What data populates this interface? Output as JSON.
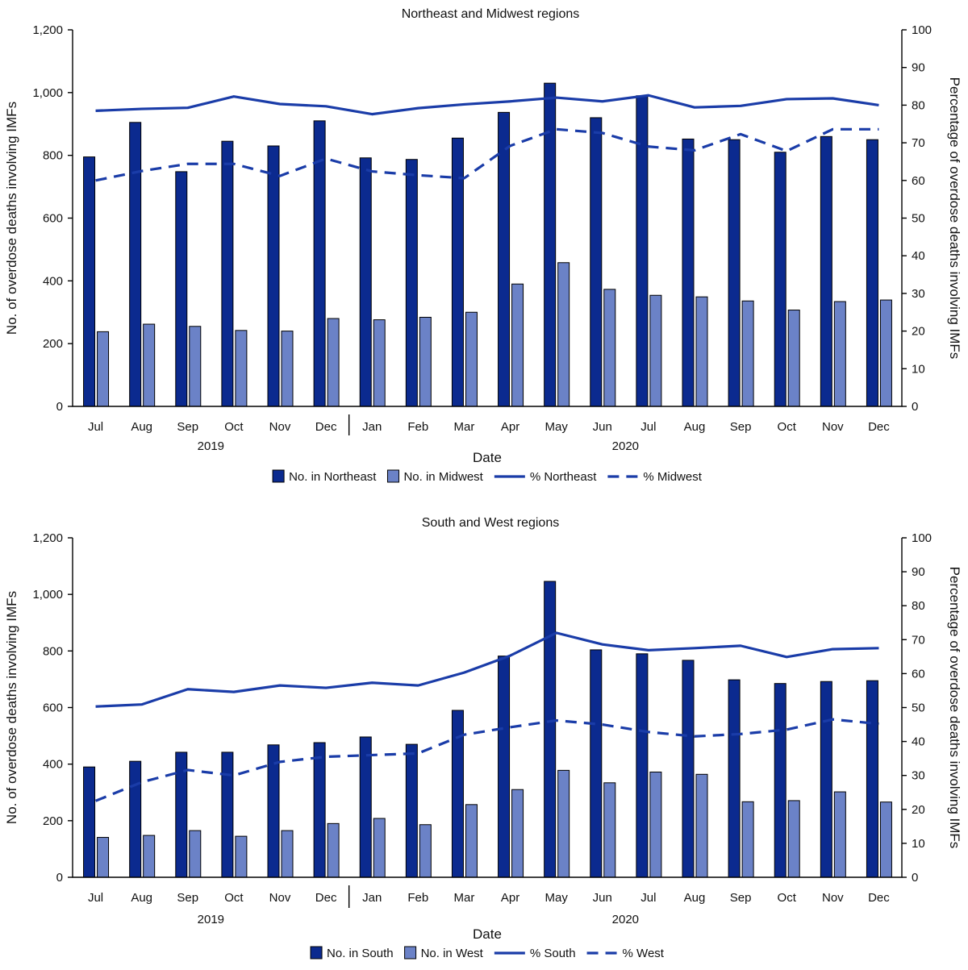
{
  "colors": {
    "bar_primary": "#0b2a8f",
    "bar_secondary": "#6b82c7",
    "line": "#1a3ca8",
    "text": "#111111"
  },
  "chart_data": [
    {
      "type": "bar",
      "title": "Northeast and Midwest regions",
      "xlabel": "Date",
      "ylabel": "No. of overdose deaths involving IMFs",
      "y2label": "Percentage of overdose deaths involving IMFs",
      "ylim": [
        0,
        1200
      ],
      "y2lim": [
        0,
        100
      ],
      "yticks": [
        0,
        200,
        400,
        600,
        800,
        1000,
        1200
      ],
      "yticklabels": [
        "0",
        "200",
        "400",
        "600",
        "800",
        "1,000",
        "1,200"
      ],
      "y2ticks": [
        0,
        10,
        20,
        30,
        40,
        50,
        60,
        70,
        80,
        90,
        100
      ],
      "y2ticklabels": [
        "0",
        "10",
        "20",
        "30",
        "40",
        "50",
        "60",
        "70",
        "80",
        "90",
        "100"
      ],
      "categories": [
        "Jul",
        "Aug",
        "Sep",
        "Oct",
        "Nov",
        "Dec",
        "Jan",
        "Feb",
        "Mar",
        "Apr",
        "May",
        "Jun",
        "Jul",
        "Aug",
        "Sep",
        "Oct",
        "Nov",
        "Dec"
      ],
      "year_groups": [
        {
          "label": "2019",
          "start": 0,
          "end": 5
        },
        {
          "label": "2020",
          "start": 6,
          "end": 17
        }
      ],
      "series": [
        {
          "name": "No. in Northeast",
          "kind": "bar",
          "axis": "left",
          "values": [
            795,
            905,
            748,
            845,
            830,
            910,
            792,
            787,
            855,
            937,
            1030,
            920,
            990,
            852,
            850,
            810,
            860,
            850
          ]
        },
        {
          "name": "No. in Midwest",
          "kind": "bar",
          "axis": "left",
          "values": [
            238,
            262,
            255,
            242,
            240,
            280,
            276,
            284,
            300,
            390,
            458,
            373,
            354,
            349,
            336,
            307,
            334,
            339
          ]
        },
        {
          "name": "% Northeast",
          "kind": "line",
          "style": "solid",
          "axis": "right",
          "values": [
            78.5,
            79.0,
            79.3,
            82.3,
            80.3,
            79.7,
            77.6,
            79.2,
            80.2,
            81.0,
            82.0,
            81.0,
            82.6,
            79.4,
            79.8,
            81.6,
            81.8,
            80.0
          ]
        },
        {
          "name": "% Midwest",
          "kind": "line",
          "style": "dashed",
          "axis": "right",
          "values": [
            60.0,
            62.5,
            64.4,
            64.4,
            61.2,
            65.8,
            62.4,
            61.4,
            60.6,
            69.2,
            73.6,
            72.6,
            69.0,
            68.0,
            72.3,
            67.8,
            73.6,
            73.6
          ]
        }
      ]
    },
    {
      "type": "bar",
      "title": "South and West regions",
      "xlabel": "Date",
      "ylabel": "No. of overdose deaths involving IMFs",
      "y2label": "Percentage of overdose deaths involving IMFs",
      "ylim": [
        0,
        1200
      ],
      "y2lim": [
        0,
        100
      ],
      "yticks": [
        0,
        200,
        400,
        600,
        800,
        1000,
        1200
      ],
      "yticklabels": [
        "0",
        "200",
        "400",
        "600",
        "800",
        "1,000",
        "1,200"
      ],
      "y2ticks": [
        0,
        10,
        20,
        30,
        40,
        50,
        60,
        70,
        80,
        90,
        100
      ],
      "y2ticklabels": [
        "0",
        "10",
        "20",
        "30",
        "40",
        "50",
        "60",
        "70",
        "80",
        "90",
        "100"
      ],
      "categories": [
        "Jul",
        "Aug",
        "Sep",
        "Oct",
        "Nov",
        "Dec",
        "Jan",
        "Feb",
        "Mar",
        "Apr",
        "May",
        "Jun",
        "Jul",
        "Aug",
        "Sep",
        "Oct",
        "Nov",
        "Dec"
      ],
      "year_groups": [
        {
          "label": "2019",
          "start": 0,
          "end": 5
        },
        {
          "label": "2020",
          "start": 6,
          "end": 17
        }
      ],
      "series": [
        {
          "name": "No. in South",
          "kind": "bar",
          "axis": "left",
          "values": [
            390,
            410,
            442,
            442,
            468,
            476,
            496,
            470,
            590,
            782,
            1046,
            804,
            790,
            767,
            698,
            685,
            692,
            695
          ]
        },
        {
          "name": "No. in West",
          "kind": "bar",
          "axis": "left",
          "values": [
            141,
            148,
            165,
            145,
            165,
            190,
            208,
            186,
            257,
            310,
            378,
            334,
            372,
            364,
            267,
            271,
            302,
            266
          ]
        },
        {
          "name": "% South",
          "kind": "line",
          "style": "solid",
          "axis": "right",
          "values": [
            50.3,
            50.9,
            55.4,
            54.6,
            56.5,
            55.8,
            57.3,
            56.5,
            60.3,
            65.3,
            72.0,
            68.6,
            66.9,
            67.5,
            68.2,
            64.9,
            67.2,
            67.5
          ]
        },
        {
          "name": "% West",
          "kind": "line",
          "style": "dashed",
          "axis": "right",
          "values": [
            22.5,
            28.0,
            31.6,
            30.0,
            34.0,
            35.5,
            36.0,
            36.5,
            42.0,
            44.2,
            46.2,
            45.0,
            42.8,
            41.5,
            42.2,
            43.5,
            46.5,
            45.2
          ]
        }
      ]
    }
  ]
}
